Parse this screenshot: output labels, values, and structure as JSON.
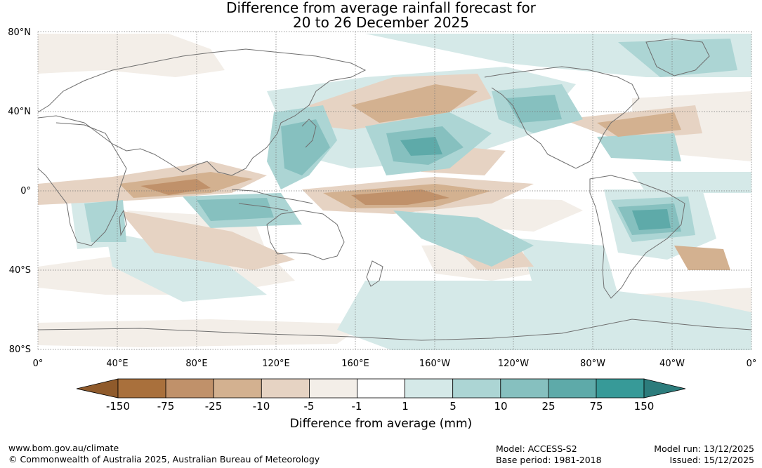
{
  "title": {
    "line1": "Difference from average rainfall forecast for",
    "line2": "20 to 26 December 2025"
  },
  "lat_labels": [
    "80°N",
    "40°N",
    "0°",
    "40°S",
    "80°S"
  ],
  "lon_labels": [
    "0°",
    "40°E",
    "80°E",
    "120°E",
    "160°E",
    "160°W",
    "120°W",
    "80°W",
    "40°W",
    "0°"
  ],
  "colorbar": {
    "labels": [
      "-150",
      "-75",
      "-25",
      "-10",
      "-5",
      "-1",
      "1",
      "5",
      "10",
      "25",
      "75",
      "150"
    ],
    "colors": [
      "#a9703c",
      "#c0916a",
      "#d3b190",
      "#e6d3c3",
      "#f3eee8",
      "#ffffff",
      "#d5e9e8",
      "#acd5d4",
      "#86c0bf",
      "#5eaaa9",
      "#379a98"
    ],
    "under_color": "#8f5a2b",
    "over_color": "#2c7c7c",
    "title": "Difference from average (mm)"
  },
  "footer": {
    "website": "www.bom.gov.au/climate",
    "copyright": "© Commonwealth of Australia 2025, Australian Bureau of Meteorology",
    "model": "Model: ACCESS-S2",
    "base_period": "Base period: 1981-2018",
    "model_run": "Model run: 13/12/2025",
    "issued": "Issued: 15/12/2025"
  },
  "map": {
    "colors": {
      "ocean_base": "#ffffff",
      "land_outline": "#6f6f6f",
      "grid": "#777777"
    }
  }
}
